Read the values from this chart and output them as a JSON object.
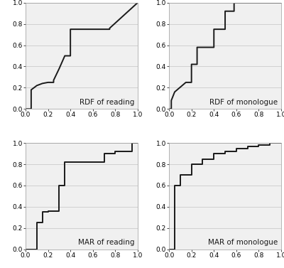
{
  "rdf_reading": {
    "x": [
      0.0,
      0.05,
      0.05,
      0.1,
      0.15,
      0.2,
      0.25,
      0.25,
      0.3,
      0.35,
      0.4,
      0.4,
      0.75,
      0.75,
      1.0
    ],
    "y": [
      0.0,
      0.0,
      0.18,
      0.22,
      0.24,
      0.25,
      0.25,
      0.27,
      0.38,
      0.5,
      0.5,
      0.75,
      0.75,
      0.76,
      1.0
    ],
    "label": "RDF of reading"
  },
  "rdf_monologue": {
    "x": [
      0.0,
      0.02,
      0.02,
      0.05,
      0.15,
      0.2,
      0.2,
      0.25,
      0.25,
      0.4,
      0.4,
      0.5,
      0.5,
      0.58,
      0.58,
      1.0
    ],
    "y": [
      0.0,
      0.0,
      0.08,
      0.16,
      0.25,
      0.25,
      0.42,
      0.42,
      0.58,
      0.58,
      0.75,
      0.75,
      0.92,
      0.92,
      1.0,
      1.0
    ],
    "label": "RDF of monologue"
  },
  "mar_reading": {
    "x": [
      0.0,
      0.1,
      0.1,
      0.15,
      0.15,
      0.2,
      0.2,
      0.3,
      0.3,
      0.35,
      0.35,
      0.55,
      0.55,
      0.7,
      0.7,
      0.8,
      0.8,
      0.95,
      0.95,
      1.0
    ],
    "y": [
      0.0,
      0.0,
      0.25,
      0.25,
      0.35,
      0.35,
      0.36,
      0.36,
      0.6,
      0.6,
      0.82,
      0.82,
      0.82,
      0.82,
      0.9,
      0.9,
      0.92,
      0.92,
      1.0,
      1.0
    ],
    "label": "MAR of reading"
  },
  "mar_monologue": {
    "x": [
      0.0,
      0.05,
      0.05,
      0.1,
      0.1,
      0.2,
      0.2,
      0.3,
      0.3,
      0.4,
      0.4,
      0.5,
      0.5,
      0.6,
      0.6,
      0.7,
      0.7,
      0.8,
      0.8,
      0.9,
      0.9,
      1.0
    ],
    "y": [
      0.0,
      0.0,
      0.6,
      0.6,
      0.7,
      0.7,
      0.8,
      0.8,
      0.85,
      0.85,
      0.9,
      0.9,
      0.92,
      0.92,
      0.95,
      0.95,
      0.97,
      0.97,
      0.98,
      0.98,
      1.0,
      1.0
    ],
    "label": "MAR of monologue"
  },
  "line_color": "#1a1a1a",
  "line_width": 1.4,
  "bg_color": "#ffffff",
  "panel_bg": "#f0f0f0",
  "grid_color": "#cccccc",
  "tick_fontsize": 6.5,
  "label_fontsize": 7.5
}
